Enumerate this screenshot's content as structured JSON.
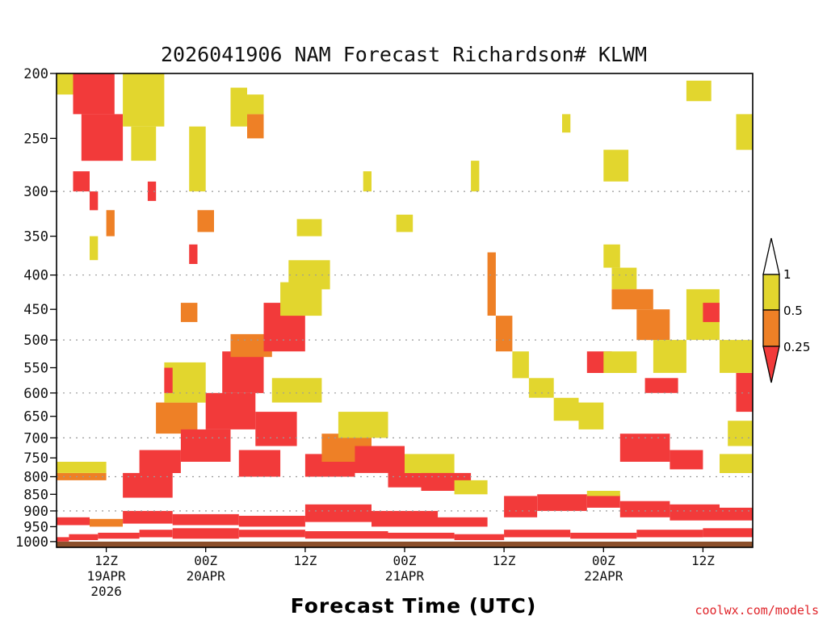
{
  "colors": {
    "lt025": "#f23a3a",
    "lt050": "#ee8026",
    "lt100": "#e2d62e",
    "ground": "#8b4f2b",
    "grid": "#9a9a9a"
  },
  "chart_data": {
    "type": "heatmap",
    "title": "2026041906 NAM Forecast Richardson# KLWM",
    "xlabel": "Forecast Time (UTC)",
    "ylabel": "",
    "x_unit": "forecast hour from 2026-04-19 06Z",
    "x_range": [
      0,
      84
    ],
    "y_unit": "pressure (hPa)",
    "y_range": [
      1020,
      200
    ],
    "y_scale": "log-pressure",
    "y_ticks": [
      200,
      250,
      300,
      350,
      400,
      450,
      500,
      550,
      600,
      650,
      700,
      750,
      800,
      850,
      900,
      950,
      1000
    ],
    "y_gridlines": [
      300,
      400,
      500,
      600,
      700,
      800,
      900
    ],
    "x_ticks": [
      {
        "hour": 6,
        "label": "12Z",
        "date": "19APR",
        "year": "2026"
      },
      {
        "hour": 18,
        "label": "00Z",
        "date": "20APR",
        "year": ""
      },
      {
        "hour": 30,
        "label": "12Z",
        "date": "",
        "year": ""
      },
      {
        "hour": 42,
        "label": "00Z",
        "date": "21APR",
        "year": ""
      },
      {
        "hour": 54,
        "label": "12Z",
        "date": "",
        "year": ""
      },
      {
        "hour": 66,
        "label": "00Z",
        "date": "22APR",
        "year": ""
      },
      {
        "hour": 78,
        "label": "12Z",
        "date": "",
        "year": ""
      }
    ],
    "legend": {
      "placement": "right",
      "labels": [
        "1",
        "0.5",
        "0.25"
      ],
      "bins": [
        {
          "label": "< 0.25",
          "color": "#f23a3a"
        },
        {
          "label": "0.25 - 0.5",
          "color": "#ee8026"
        },
        {
          "label": "0.5 - 1",
          "color": "#e2d62e"
        },
        {
          "label": "> 1",
          "color": "#ffffff"
        }
      ]
    },
    "ground_level_hPa": 1000,
    "bins_note": "0 = Ri < 0.25, 1 = 0.25-0.5, 2 = 0.5-1",
    "patches": [
      {
        "t": [
          0,
          1.5
        ],
        "p": [
          985,
          1000
        ],
        "bin": 0
      },
      {
        "t": [
          1.5,
          5
        ],
        "p": [
          975,
          995
        ],
        "bin": 0
      },
      {
        "t": [
          5,
          10
        ],
        "p": [
          970,
          990
        ],
        "bin": 0
      },
      {
        "t": [
          10,
          14
        ],
        "p": [
          960,
          985
        ],
        "bin": 0
      },
      {
        "t": [
          14,
          22
        ],
        "p": [
          955,
          990
        ],
        "bin": 0
      },
      {
        "t": [
          22,
          30
        ],
        "p": [
          960,
          985
        ],
        "bin": 0
      },
      {
        "t": [
          30,
          40
        ],
        "p": [
          965,
          990
        ],
        "bin": 0
      },
      {
        "t": [
          40,
          48
        ],
        "p": [
          970,
          990
        ],
        "bin": 0
      },
      {
        "t": [
          48,
          54
        ],
        "p": [
          975,
          995
        ],
        "bin": 0
      },
      {
        "t": [
          54,
          62
        ],
        "p": [
          960,
          985
        ],
        "bin": 0
      },
      {
        "t": [
          62,
          70
        ],
        "p": [
          970,
          990
        ],
        "bin": 0
      },
      {
        "t": [
          70,
          78
        ],
        "p": [
          960,
          985
        ],
        "bin": 0
      },
      {
        "t": [
          78,
          84
        ],
        "p": [
          955,
          985
        ],
        "bin": 0
      },
      {
        "t": [
          0,
          4
        ],
        "p": [
          920,
          945
        ],
        "bin": 0
      },
      {
        "t": [
          4,
          8
        ],
        "p": [
          925,
          950
        ],
        "bin": 1
      },
      {
        "t": [
          8,
          14
        ],
        "p": [
          900,
          940
        ],
        "bin": 0
      },
      {
        "t": [
          14,
          22
        ],
        "p": [
          910,
          945
        ],
        "bin": 0
      },
      {
        "t": [
          22,
          30
        ],
        "p": [
          915,
          950
        ],
        "bin": 0
      },
      {
        "t": [
          30,
          38
        ],
        "p": [
          880,
          935
        ],
        "bin": 0
      },
      {
        "t": [
          38,
          46
        ],
        "p": [
          900,
          950
        ],
        "bin": 0
      },
      {
        "t": [
          46,
          52
        ],
        "p": [
          920,
          950
        ],
        "bin": 0
      },
      {
        "t": [
          54,
          58
        ],
        "p": [
          855,
          920
        ],
        "bin": 0
      },
      {
        "t": [
          58,
          64
        ],
        "p": [
          850,
          900
        ],
        "bin": 0
      },
      {
        "t": [
          64,
          68
        ],
        "p": [
          850,
          890
        ],
        "bin": 0
      },
      {
        "t": [
          64,
          68
        ],
        "p": [
          840,
          855
        ],
        "bin": 2
      },
      {
        "t": [
          68,
          74
        ],
        "p": [
          870,
          920
        ],
        "bin": 0
      },
      {
        "t": [
          74,
          80
        ],
        "p": [
          880,
          930
        ],
        "bin": 0
      },
      {
        "t": [
          80,
          84
        ],
        "p": [
          890,
          930
        ],
        "bin": 0
      },
      {
        "t": [
          0,
          6
        ],
        "p": [
          790,
          810
        ],
        "bin": 1
      },
      {
        "t": [
          0,
          6
        ],
        "p": [
          760,
          790
        ],
        "bin": 2
      },
      {
        "t": [
          8,
          14
        ],
        "p": [
          790,
          860
        ],
        "bin": 0
      },
      {
        "t": [
          10,
          15
        ],
        "p": [
          730,
          790
        ],
        "bin": 0
      },
      {
        "t": [
          12,
          17
        ],
        "p": [
          620,
          690
        ],
        "bin": 1
      },
      {
        "t": [
          13,
          18
        ],
        "p": [
          540,
          620
        ],
        "bin": 2
      },
      {
        "t": [
          15,
          21
        ],
        "p": [
          680,
          760
        ],
        "bin": 0
      },
      {
        "t": [
          18,
          24
        ],
        "p": [
          600,
          680
        ],
        "bin": 0
      },
      {
        "t": [
          20,
          25
        ],
        "p": [
          520,
          600
        ],
        "bin": 0
      },
      {
        "t": [
          21,
          26
        ],
        "p": [
          490,
          530
        ],
        "bin": 1
      },
      {
        "t": [
          22,
          27
        ],
        "p": [
          730,
          800
        ],
        "bin": 0
      },
      {
        "t": [
          24,
          29
        ],
        "p": [
          640,
          720
        ],
        "bin": 0
      },
      {
        "t": [
          25,
          30
        ],
        "p": [
          440,
          520
        ],
        "bin": 0
      },
      {
        "t": [
          27,
          32
        ],
        "p": [
          410,
          460
        ],
        "bin": 2
      },
      {
        "t": [
          28,
          33
        ],
        "p": [
          380,
          420
        ],
        "bin": 2
      },
      {
        "t": [
          26,
          32
        ],
        "p": [
          570,
          620
        ],
        "bin": 2
      },
      {
        "t": [
          30,
          36
        ],
        "p": [
          740,
          800
        ],
        "bin": 0
      },
      {
        "t": [
          32,
          38
        ],
        "p": [
          690,
          760
        ],
        "bin": 1
      },
      {
        "t": [
          34,
          40
        ],
        "p": [
          640,
          700
        ],
        "bin": 2
      },
      {
        "t": [
          36,
          42
        ],
        "p": [
          720,
          790
        ],
        "bin": 0
      },
      {
        "t": [
          40,
          46
        ],
        "p": [
          770,
          830
        ],
        "bin": 0
      },
      {
        "t": [
          42,
          48
        ],
        "p": [
          740,
          790
        ],
        "bin": 2
      },
      {
        "t": [
          44,
          50
        ],
        "p": [
          790,
          840
        ],
        "bin": 0
      },
      {
        "t": [
          48,
          52
        ],
        "p": [
          810,
          850
        ],
        "bin": 2
      },
      {
        "t": [
          2,
          7
        ],
        "p": [
          200,
          230
        ],
        "bin": 0
      },
      {
        "t": [
          3,
          8
        ],
        "p": [
          230,
          270
        ],
        "bin": 0
      },
      {
        "t": [
          0,
          2
        ],
        "p": [
          200,
          215
        ],
        "bin": 2
      },
      {
        "t": [
          8,
          13
        ],
        "p": [
          200,
          240
        ],
        "bin": 2
      },
      {
        "t": [
          9,
          12
        ],
        "p": [
          240,
          270
        ],
        "bin": 2
      },
      {
        "t": [
          2,
          4
        ],
        "p": [
          280,
          300
        ],
        "bin": 0
      },
      {
        "t": [
          4,
          5
        ],
        "p": [
          300,
          320
        ],
        "bin": 0
      },
      {
        "t": [
          23,
          25
        ],
        "p": [
          230,
          250
        ],
        "bin": 1
      },
      {
        "t": [
          23,
          25
        ],
        "p": [
          215,
          230
        ],
        "bin": 2
      },
      {
        "t": [
          29,
          32
        ],
        "p": [
          330,
          350
        ],
        "bin": 2
      },
      {
        "t": [
          37,
          38
        ],
        "p": [
          280,
          300
        ],
        "bin": 2
      },
      {
        "t": [
          52,
          53
        ],
        "p": [
          370,
          460
        ],
        "bin": 1
      },
      {
        "t": [
          53,
          55
        ],
        "p": [
          460,
          520
        ],
        "bin": 1
      },
      {
        "t": [
          55,
          57
        ],
        "p": [
          520,
          570
        ],
        "bin": 2
      },
      {
        "t": [
          57,
          60
        ],
        "p": [
          570,
          610
        ],
        "bin": 2
      },
      {
        "t": [
          60,
          63
        ],
        "p": [
          610,
          660
        ],
        "bin": 2
      },
      {
        "t": [
          63,
          66
        ],
        "p": [
          620,
          680
        ],
        "bin": 2
      },
      {
        "t": [
          64,
          67
        ],
        "p": [
          520,
          560
        ],
        "bin": 0
      },
      {
        "t": [
          66,
          70
        ],
        "p": [
          520,
          560
        ],
        "bin": 2
      },
      {
        "t": [
          67,
          70
        ],
        "p": [
          390,
          420
        ],
        "bin": 2
      },
      {
        "t": [
          66,
          68
        ],
        "p": [
          360,
          390
        ],
        "bin": 2
      },
      {
        "t": [
          67,
          72
        ],
        "p": [
          420,
          450
        ],
        "bin": 1
      },
      {
        "t": [
          70,
          74
        ],
        "p": [
          450,
          500
        ],
        "bin": 1
      },
      {
        "t": [
          72,
          76
        ],
        "p": [
          500,
          560
        ],
        "bin": 2
      },
      {
        "t": [
          71,
          75
        ],
        "p": [
          570,
          600
        ],
        "bin": 0
      },
      {
        "t": [
          68,
          74
        ],
        "p": [
          690,
          760
        ],
        "bin": 0
      },
      {
        "t": [
          74,
          78
        ],
        "p": [
          730,
          780
        ],
        "bin": 0
      },
      {
        "t": [
          76,
          80
        ],
        "p": [
          420,
          500
        ],
        "bin": 2
      },
      {
        "t": [
          78,
          80
        ],
        "p": [
          440,
          470
        ],
        "bin": 0
      },
      {
        "t": [
          80,
          84
        ],
        "p": [
          500,
          560
        ],
        "bin": 2
      },
      {
        "t": [
          82,
          84
        ],
        "p": [
          560,
          640
        ],
        "bin": 0
      },
      {
        "t": [
          81,
          84
        ],
        "p": [
          660,
          720
        ],
        "bin": 2
      },
      {
        "t": [
          80,
          84
        ],
        "p": [
          740,
          790
        ],
        "bin": 2
      },
      {
        "t": [
          76,
          79
        ],
        "p": [
          205,
          220
        ],
        "bin": 2
      },
      {
        "t": [
          82,
          84
        ],
        "p": [
          230,
          260
        ],
        "bin": 2
      },
      {
        "t": [
          66,
          69
        ],
        "p": [
          260,
          290
        ],
        "bin": 2
      },
      {
        "t": [
          61,
          62
        ],
        "p": [
          230,
          245
        ],
        "bin": 2
      },
      {
        "t": [
          50,
          51
        ],
        "p": [
          270,
          300
        ],
        "bin": 2
      },
      {
        "t": [
          41,
          43
        ],
        "p": [
          325,
          345
        ],
        "bin": 2
      },
      {
        "t": [
          16,
          18
        ],
        "p": [
          240,
          300
        ],
        "bin": 2
      },
      {
        "t": [
          17,
          19
        ],
        "p": [
          320,
          345
        ],
        "bin": 1
      },
      {
        "t": [
          15,
          17
        ],
        "p": [
          440,
          470
        ],
        "bin": 1
      },
      {
        "t": [
          13,
          14
        ],
        "p": [
          550,
          600
        ],
        "bin": 0
      },
      {
        "t": [
          21,
          23
        ],
        "p": [
          210,
          240
        ],
        "bin": 2
      },
      {
        "t": [
          6,
          7
        ],
        "p": [
          320,
          350
        ],
        "bin": 1
      },
      {
        "t": [
          11,
          12
        ],
        "p": [
          290,
          310
        ],
        "bin": 0
      },
      {
        "t": [
          4,
          5
        ],
        "p": [
          350,
          380
        ],
        "bin": 2
      },
      {
        "t": [
          16,
          17
        ],
        "p": [
          360,
          385
        ],
        "bin": 0
      }
    ]
  },
  "credit": "coolwx.com/models"
}
